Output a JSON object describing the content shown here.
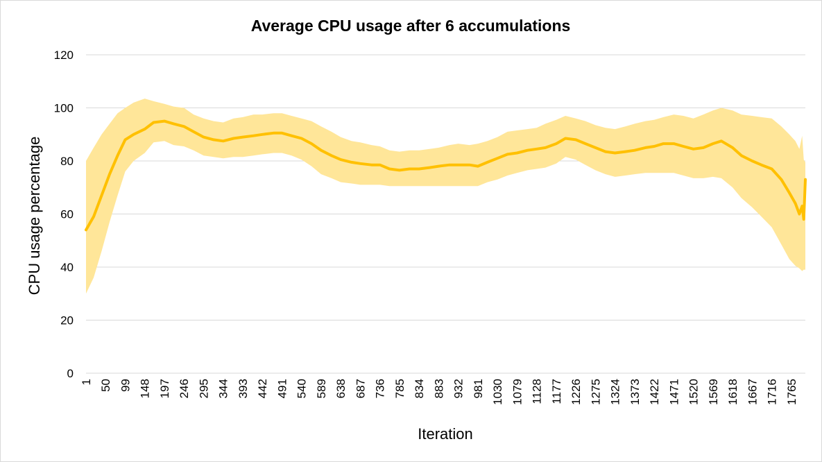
{
  "chart_data": {
    "type": "line",
    "title": "Average CPU usage after 6 accumulations",
    "xlabel": "Iteration",
    "ylabel": "CPU usage percentage",
    "ylim": [
      0,
      120
    ],
    "xlim": [
      1,
      1800
    ],
    "yticks": [
      0,
      20,
      40,
      60,
      80,
      100,
      120
    ],
    "xtick_labels": [
      "1",
      "50",
      "99",
      "148",
      "197",
      "246",
      "295",
      "344",
      "393",
      "442",
      "491",
      "540",
      "589",
      "638",
      "687",
      "736",
      "785",
      "834",
      "883",
      "932",
      "981",
      "1030",
      "1079",
      "1128",
      "1177",
      "1226",
      "1275",
      "1324",
      "1373",
      "1422",
      "1471",
      "1520",
      "1569",
      "1618",
      "1667",
      "1716",
      "1765"
    ],
    "grid": true,
    "legend": "none",
    "series": [
      {
        "color": "#ffc000",
        "band_color": "#ffe699",
        "x": [
          1,
          20,
          40,
          60,
          80,
          99,
          120,
          148,
          170,
          197,
          220,
          246,
          270,
          295,
          320,
          344,
          370,
          393,
          420,
          442,
          470,
          491,
          515,
          540,
          565,
          589,
          615,
          638,
          665,
          687,
          715,
          736,
          760,
          785,
          810,
          834,
          860,
          883,
          910,
          932,
          960,
          981,
          1005,
          1030,
          1055,
          1079,
          1105,
          1128,
          1150,
          1177,
          1200,
          1226,
          1250,
          1275,
          1300,
          1324,
          1350,
          1373,
          1400,
          1422,
          1445,
          1471,
          1495,
          1520,
          1545,
          1569,
          1590,
          1618,
          1640,
          1667,
          1690,
          1716,
          1740,
          1760,
          1775,
          1785,
          1792,
          1796,
          1800
        ],
        "values": [
          54,
          59,
          67,
          75,
          82,
          88,
          90,
          92,
          94.5,
          95,
          94,
          93,
          91,
          89,
          88,
          87.5,
          88.5,
          89,
          89.5,
          90,
          90.5,
          90.5,
          89.5,
          88.5,
          86.5,
          84,
          82,
          80.5,
          79.5,
          79,
          78.5,
          78.5,
          77,
          76.5,
          77,
          77,
          77.5,
          78,
          78.5,
          78.5,
          78.5,
          78,
          79.5,
          81,
          82.5,
          83,
          84,
          84.5,
          85,
          86.5,
          88.5,
          88,
          86.5,
          85,
          83.5,
          83,
          83.5,
          84,
          85,
          85.5,
          86.5,
          86.5,
          85.5,
          84.5,
          85,
          86.5,
          87.5,
          85,
          82,
          80,
          78.5,
          77,
          73,
          68,
          64,
          60,
          63,
          58,
          73
        ],
        "lower": [
          30,
          36,
          46,
          57,
          67,
          76,
          80,
          83,
          87,
          87.5,
          86,
          85.5,
          84,
          82,
          81.5,
          81,
          81.5,
          81.5,
          82,
          82.5,
          83,
          83,
          82,
          80.5,
          78,
          75,
          73.5,
          72,
          71.5,
          71,
          71,
          71,
          70.5,
          70.5,
          70.5,
          70.5,
          70.5,
          70.5,
          70.5,
          70.5,
          70.5,
          70.5,
          72,
          73,
          74.5,
          75.5,
          76.5,
          77,
          77.5,
          79,
          81.5,
          80.5,
          78.5,
          76.5,
          75,
          74,
          74.5,
          75,
          75.5,
          75.5,
          75.5,
          75.5,
          74.5,
          73.5,
          73.5,
          74,
          73.5,
          70,
          66,
          62.5,
          59,
          55,
          48.5,
          43,
          40.5,
          39.5,
          38.5,
          39,
          39
        ],
        "upper": [
          80,
          85,
          90,
          94,
          98,
          100,
          102,
          103.5,
          102.5,
          101.5,
          100.5,
          100,
          97.5,
          96,
          95,
          94.5,
          96,
          96.5,
          97.5,
          97.5,
          98,
          98,
          97,
          96,
          95,
          93,
          91,
          89,
          87.5,
          87,
          86,
          85.5,
          84,
          83.5,
          84,
          84,
          84.5,
          85,
          86,
          86.5,
          86,
          86.5,
          87.5,
          89,
          91,
          91.5,
          92,
          92.5,
          94,
          95.5,
          97,
          96,
          95,
          93.5,
          92.5,
          92,
          93,
          94,
          95,
          95.5,
          96.5,
          97.5,
          97,
          96,
          97.5,
          99,
          100,
          99,
          97.5,
          97,
          96.5,
          96,
          93,
          90,
          87.5,
          84.5,
          89.5,
          80.5,
          79.5
        ]
      }
    ]
  }
}
